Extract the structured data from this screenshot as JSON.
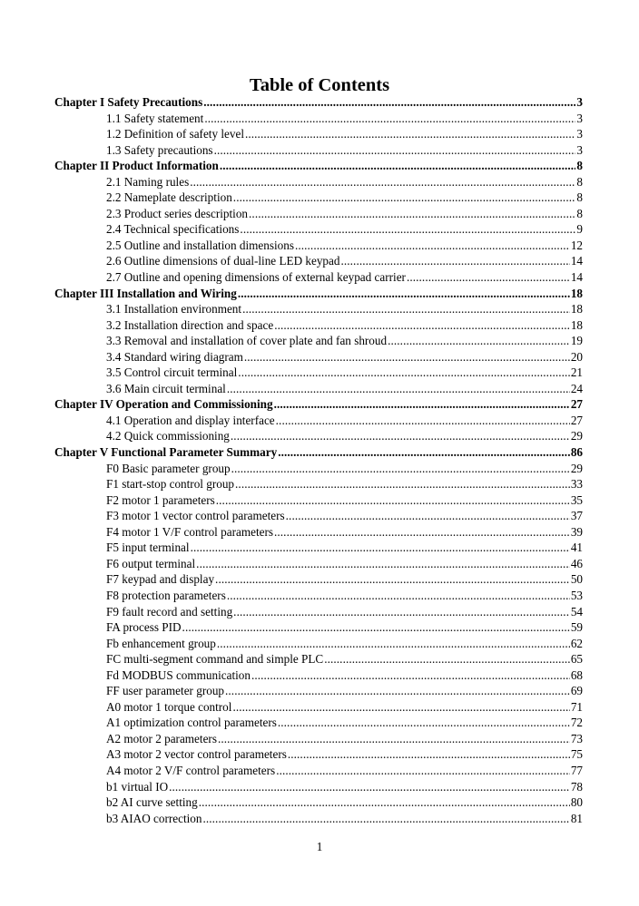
{
  "title": "Table of Contents",
  "entries": [
    {
      "level": "chapter",
      "label": "Chapter I Safety Precautions",
      "page": "3"
    },
    {
      "level": "sub",
      "label": "1.1 Safety statement",
      "page": "3"
    },
    {
      "level": "sub",
      "label": "1.2 Definition of safety level",
      "page": "3"
    },
    {
      "level": "sub",
      "label": "1.3 Safety precautions",
      "page": "3"
    },
    {
      "level": "chapter",
      "label": "Chapter II Product Information",
      "page": "8"
    },
    {
      "level": "sub",
      "label": "2.1 Naming rules",
      "page": "8"
    },
    {
      "level": "sub",
      "label": "2.2 Nameplate description",
      "page": "8"
    },
    {
      "level": "sub",
      "label": "2.3 Product series description",
      "page": "8"
    },
    {
      "level": "sub",
      "label": "2.4 Technical specifications",
      "page": "9"
    },
    {
      "level": "sub",
      "label": "2.5 Outline and installation dimensions",
      "page": "12"
    },
    {
      "level": "sub",
      "label": "2.6 Outline dimensions of dual-line LED keypad",
      "page": "14"
    },
    {
      "level": "sub",
      "label": "2.7 Outline and opening dimensions of external keypad carrier",
      "page": "14"
    },
    {
      "level": "chapter",
      "label": "Chapter III Installation and Wiring",
      "page": "18"
    },
    {
      "level": "sub",
      "label": "3.1 Installation environment",
      "page": "18"
    },
    {
      "level": "sub",
      "label": "3.2 Installation direction and space",
      "page": "18"
    },
    {
      "level": "sub",
      "label": "3.3 Removal and installation of cover plate and fan shroud",
      "page": "19"
    },
    {
      "level": "sub",
      "label": "3.4 Standard wiring diagram",
      "page": "20"
    },
    {
      "level": "sub",
      "label": "3.5 Control circuit terminal",
      "page": "21"
    },
    {
      "level": "sub",
      "label": "3.6 Main circuit terminal",
      "page": "24"
    },
    {
      "level": "chapter",
      "label": "Chapter IV Operation and Commissioning",
      "page": "27"
    },
    {
      "level": "sub",
      "label": "4.1 Operation and display interface",
      "page": "27"
    },
    {
      "level": "sub",
      "label": "4.2 Quick commissioning",
      "page": "29"
    },
    {
      "level": "chapter",
      "label": "Chapter V Functional Parameter Summary",
      "page": "86"
    },
    {
      "level": "sub",
      "label": "F0 Basic parameter group",
      "page": "29"
    },
    {
      "level": "sub",
      "label": "F1 start-stop control group",
      "page": "33"
    },
    {
      "level": "sub",
      "label": "F2 motor 1 parameters",
      "page": "35"
    },
    {
      "level": "sub",
      "label": "F3 motor 1 vector control parameters",
      "page": "37"
    },
    {
      "level": "sub",
      "label": "F4 motor 1 V/F control parameters",
      "page": "39"
    },
    {
      "level": "sub",
      "label": "F5 input terminal",
      "page": "41"
    },
    {
      "level": "sub",
      "label": "F6 output terminal",
      "page": "46"
    },
    {
      "level": "sub",
      "label": "F7 keypad and display",
      "page": "50"
    },
    {
      "level": "sub",
      "label": "F8 protection parameters",
      "page": "53"
    },
    {
      "level": "sub",
      "label": "F9 fault record and setting",
      "page": "54"
    },
    {
      "level": "sub",
      "label": "FA process PID",
      "page": "59"
    },
    {
      "level": "sub",
      "label": "Fb enhancement group",
      "page": "62"
    },
    {
      "level": "sub",
      "label": "FC multi-segment command and simple PLC",
      "page": "65"
    },
    {
      "level": "sub",
      "label": "Fd MODBUS communication",
      "page": "68"
    },
    {
      "level": "sub",
      "label": "FF user parameter group",
      "page": "69"
    },
    {
      "level": "sub",
      "label": "A0 motor 1 torque control",
      "page": "71"
    },
    {
      "level": "sub",
      "label": "A1 optimization control parameters",
      "page": "72"
    },
    {
      "level": "sub",
      "label": "A2 motor 2 parameters",
      "page": "73"
    },
    {
      "level": "sub",
      "label": "A3 motor 2 vector control parameters",
      "page": "75"
    },
    {
      "level": "sub",
      "label": "A4 motor 2 V/F control parameters",
      "page": "77"
    },
    {
      "level": "sub",
      "label": "b1 virtual IO",
      "page": "78"
    },
    {
      "level": "sub",
      "label": "b2 AI curve setting",
      "page": "80"
    },
    {
      "level": "sub",
      "label": "b3 AIAO correction",
      "page": "81"
    }
  ],
  "page_number": "1"
}
